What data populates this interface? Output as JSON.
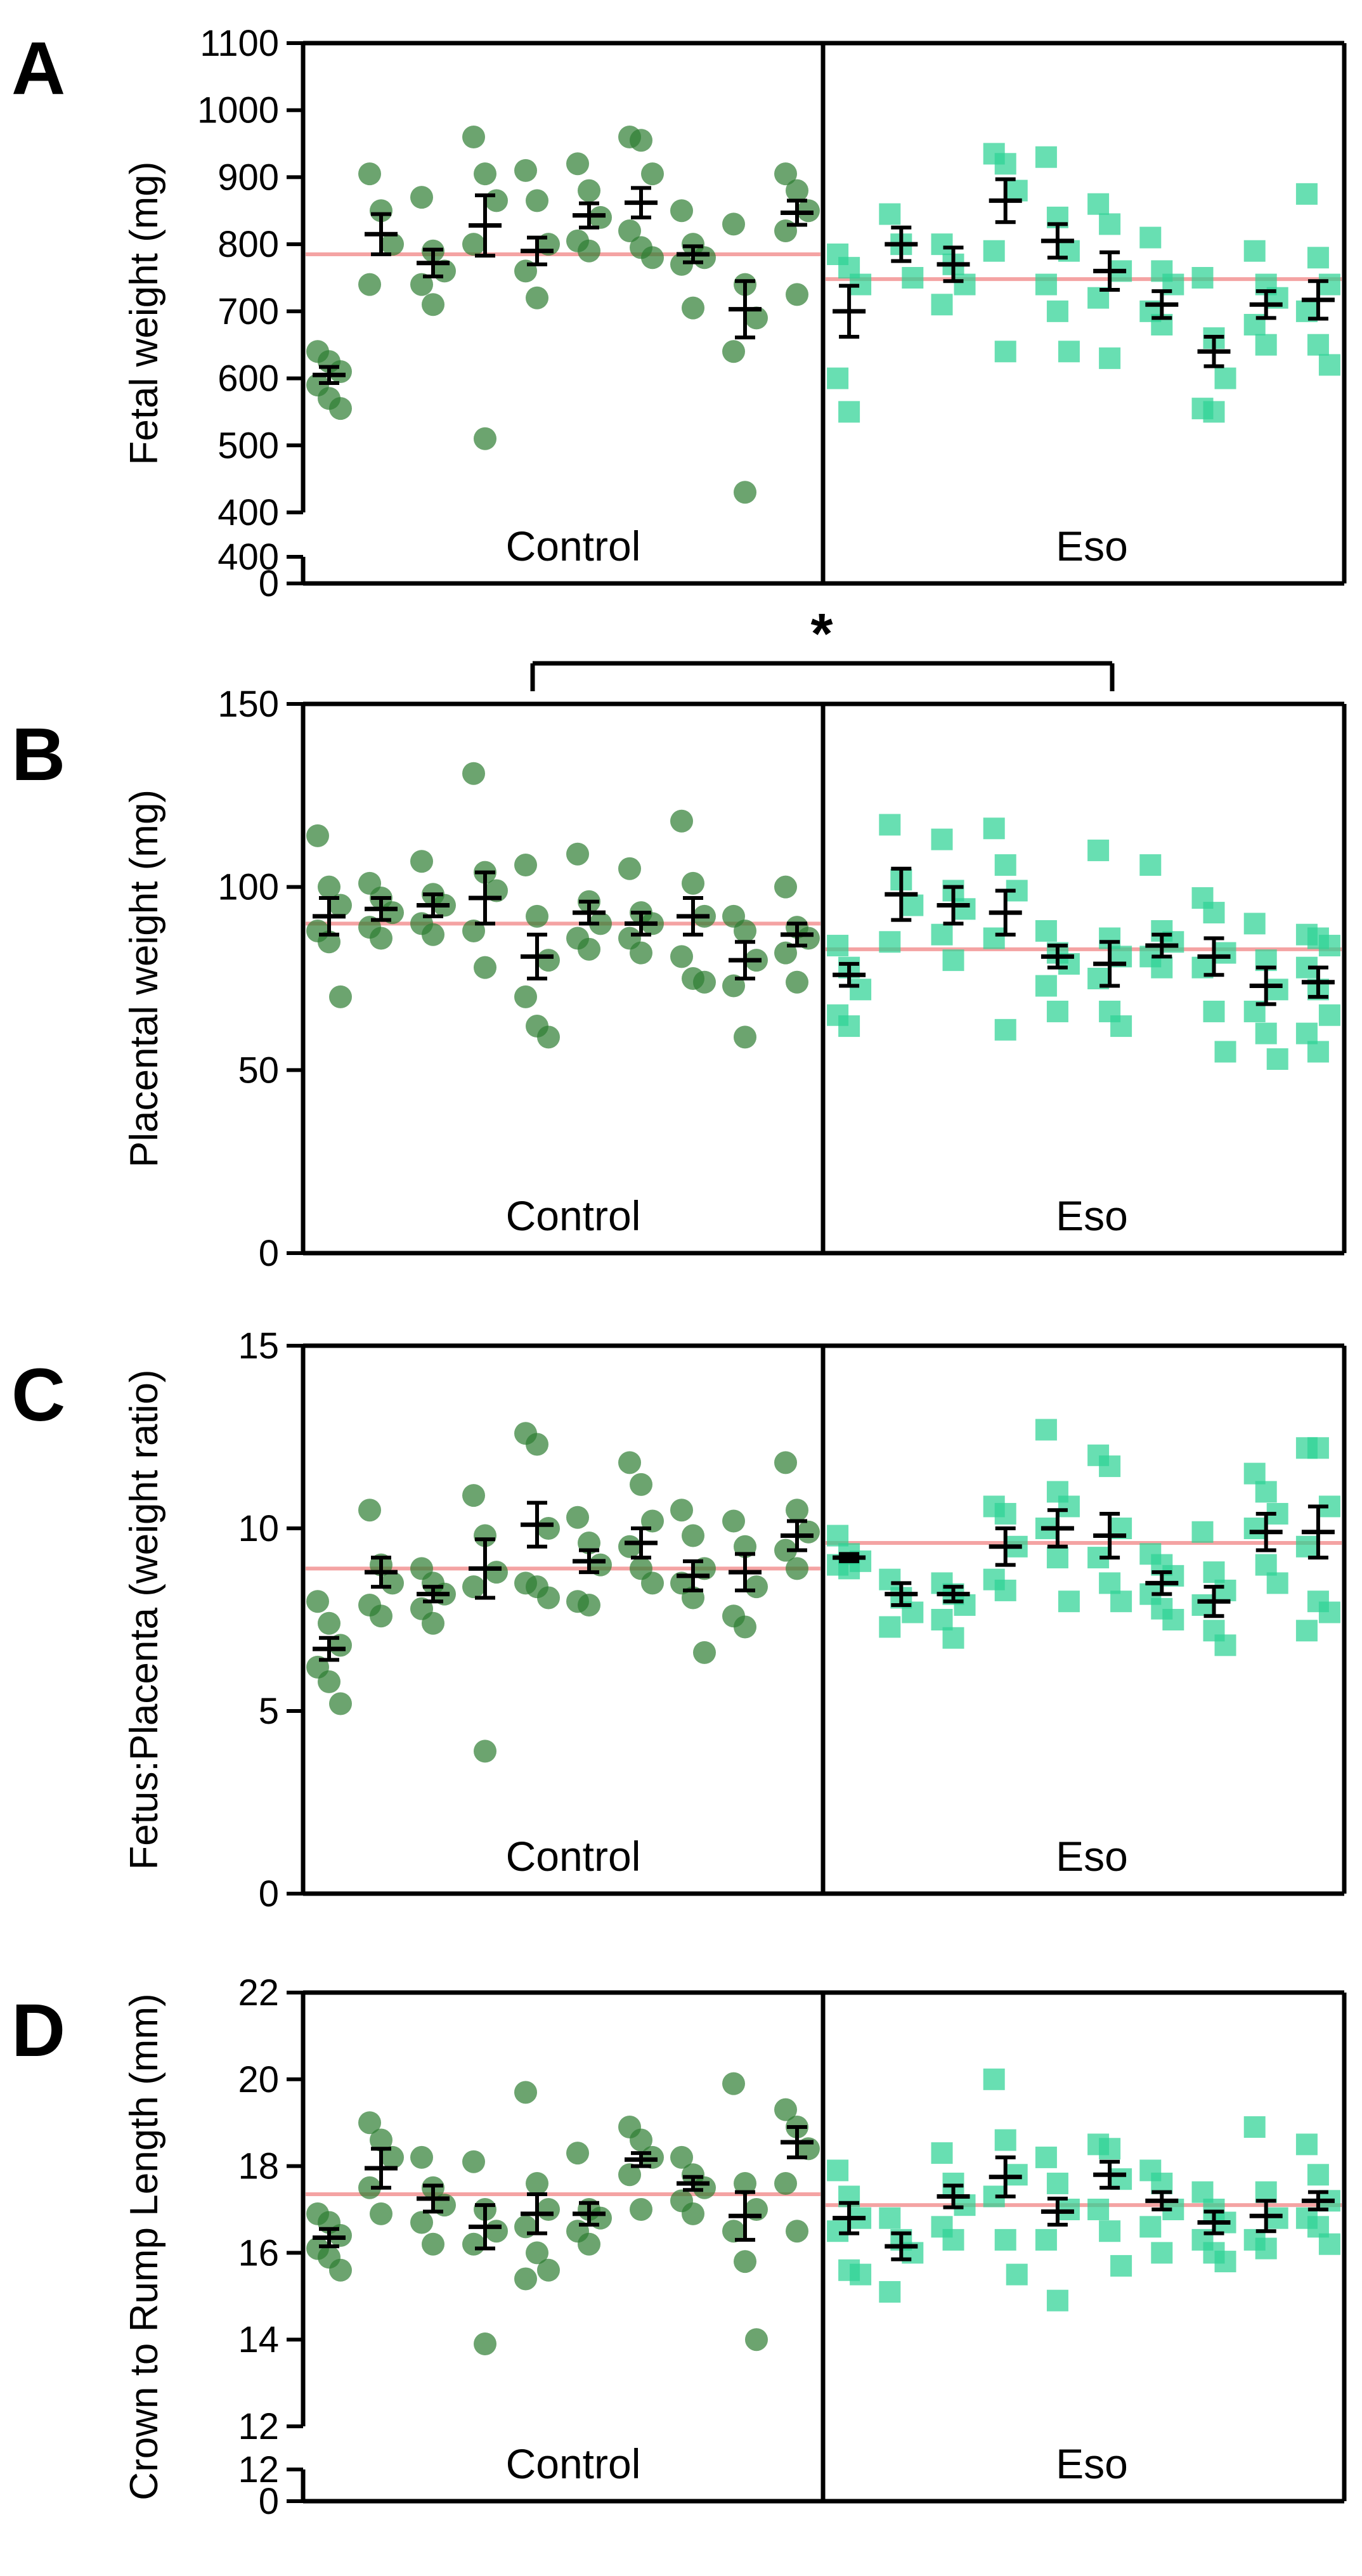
{
  "colors": {
    "control": "#2e7d32",
    "eso": "#2ed394",
    "mean_line": "#f4a3a3",
    "error_bar": "#000000"
  },
  "significance": {
    "mark": "*",
    "between": [
      "B",
      "C"
    ]
  },
  "chart_data": [
    {
      "panel": "A",
      "type": "scatter",
      "ylabel": "Fetal weight (mg)",
      "ylim": [
        400,
        1100
      ],
      "yticks": [
        400,
        500,
        600,
        700,
        800,
        900,
        1000,
        1100
      ],
      "broken_axis_tick": "400",
      "zero_tick": "0",
      "groups": [
        "Control",
        "Eso"
      ],
      "group_means": [
        785,
        748
      ],
      "control": {
        "points": [
          [
            640,
            625,
            610,
            590,
            570,
            555
          ],
          [
            905,
            850,
            800,
            740
          ],
          [
            870,
            790,
            760,
            740,
            710
          ],
          [
            960,
            905,
            865,
            800,
            510
          ],
          [
            910,
            865,
            800,
            760,
            720
          ],
          [
            920,
            880,
            840,
            805,
            790
          ],
          [
            960,
            955,
            905,
            820,
            795,
            780
          ],
          [
            850,
            800,
            780,
            770,
            705
          ],
          [
            830,
            740,
            690,
            640,
            430
          ],
          [
            905,
            880,
            850,
            820,
            725
          ]
        ],
        "means": [
          605,
          815,
          772,
          828,
          790,
          843,
          862,
          785,
          703,
          847
        ],
        "errors": [
          12,
          30,
          20,
          45,
          20,
          18,
          22,
          12,
          42,
          18
        ]
      },
      "eso": {
        "points": [
          [
            785,
            765,
            740,
            600,
            550
          ],
          [
            845,
            800,
            750
          ],
          [
            800,
            770,
            740,
            710
          ],
          [
            935,
            920,
            880,
            790,
            640
          ],
          [
            930,
            840,
            790,
            740,
            700,
            640
          ],
          [
            860,
            830,
            760,
            720,
            630
          ],
          [
            810,
            760,
            740,
            700,
            680
          ],
          [
            750,
            660,
            600,
            555,
            550
          ],
          [
            790,
            740,
            720,
            680,
            650
          ],
          [
            875,
            780,
            740,
            700,
            650,
            620
          ]
        ],
        "means": [
          700,
          800,
          770,
          865,
          805,
          760,
          710,
          640,
          710,
          717
        ],
        "errors": [
          38,
          25,
          25,
          32,
          25,
          28,
          20,
          22,
          20,
          28
        ]
      }
    },
    {
      "panel": "B",
      "type": "scatter",
      "ylabel": "Placental weight (mg)",
      "ylim": [
        0,
        150
      ],
      "yticks": [
        0,
        50,
        100,
        150
      ],
      "groups": [
        "Control",
        "Eso"
      ],
      "group_means": [
        90,
        83
      ],
      "control": {
        "points": [
          [
            114,
            100,
            95,
            88,
            85,
            70
          ],
          [
            101,
            97,
            93,
            89,
            86
          ],
          [
            107,
            98,
            95,
            90,
            87
          ],
          [
            131,
            104,
            99,
            88,
            78
          ],
          [
            106,
            92,
            80,
            70,
            62,
            59
          ],
          [
            109,
            96,
            90,
            86,
            83
          ],
          [
            105,
            93,
            90,
            86,
            82
          ],
          [
            118,
            101,
            92,
            81,
            75,
            74
          ],
          [
            92,
            88,
            80,
            73,
            59
          ],
          [
            100,
            89,
            86,
            82,
            74
          ]
        ],
        "means": [
          92,
          94,
          95,
          97,
          81,
          93,
          90,
          92,
          80,
          87
        ],
        "errors": [
          5,
          3,
          3,
          7,
          6,
          3,
          3,
          5,
          5,
          3
        ]
      },
      "eso": {
        "points": [
          [
            84,
            78,
            72,
            65,
            62
          ],
          [
            117,
            102,
            95,
            85
          ],
          [
            113,
            99,
            94,
            87,
            80
          ],
          [
            116,
            106,
            99,
            86,
            61
          ],
          [
            88,
            82,
            79,
            73,
            66
          ],
          [
            110,
            86,
            81,
            75,
            66,
            62
          ],
          [
            106,
            88,
            85,
            81,
            78
          ],
          [
            97,
            93,
            82,
            78,
            66,
            55
          ],
          [
            90,
            80,
            72,
            66,
            60,
            53
          ],
          [
            87,
            86,
            84,
            78,
            72,
            65,
            60,
            55
          ]
        ],
        "means": [
          76,
          98,
          95,
          93,
          81,
          79,
          84,
          81,
          73,
          74
        ],
        "errors": [
          3,
          7,
          5,
          6,
          3,
          6,
          3,
          5,
          5,
          4
        ]
      }
    },
    {
      "panel": "C",
      "type": "scatter",
      "ylabel": "Fetus:Placenta (weight ratio)",
      "ylim": [
        0,
        15
      ],
      "yticks": [
        0,
        5,
        10,
        15
      ],
      "groups": [
        "Control",
        "Eso"
      ],
      "group_means": [
        8.9,
        9.6
      ],
      "control": {
        "points": [
          [
            8.0,
            7.4,
            6.8,
            6.2,
            5.8,
            5.2
          ],
          [
            10.5,
            9.0,
            8.5,
            7.9,
            7.6
          ],
          [
            8.9,
            8.5,
            8.2,
            7.8,
            7.4
          ],
          [
            10.9,
            9.8,
            8.8,
            8.4,
            3.9
          ],
          [
            12.6,
            12.3,
            10.0,
            8.5,
            8.4,
            8.1
          ],
          [
            10.3,
            9.6,
            9.0,
            8.0,
            7.9
          ],
          [
            11.8,
            11.2,
            10.2,
            9.5,
            8.9,
            8.5
          ],
          [
            10.5,
            9.8,
            8.9,
            8.5,
            8.1,
            6.6
          ],
          [
            10.2,
            9.5,
            8.4,
            7.6,
            7.3
          ],
          [
            11.8,
            10.5,
            9.9,
            9.4,
            8.9
          ]
        ],
        "means": [
          6.7,
          8.8,
          8.2,
          8.9,
          10.1,
          9.1,
          9.6,
          8.7,
          8.8,
          9.8
        ],
        "errors": [
          0.3,
          0.4,
          0.2,
          0.8,
          0.6,
          0.3,
          0.4,
          0.4,
          0.5,
          0.4
        ]
      },
      "eso": {
        "points": [
          [
            9.8,
            9.3,
            9.1,
            9.0,
            8.9
          ],
          [
            8.6,
            8.1,
            7.7,
            7.3
          ],
          [
            8.5,
            8.2,
            7.9,
            7.5,
            7.0
          ],
          [
            10.6,
            10.4,
            9.5,
            8.6,
            8.3
          ],
          [
            12.7,
            11.0,
            10.6,
            10.0,
            9.2,
            8.0
          ],
          [
            12.0,
            11.7,
            10.0,
            9.2,
            8.5,
            8.0
          ],
          [
            9.3,
            9.0,
            8.7,
            8.2,
            7.8,
            7.5
          ],
          [
            9.9,
            8.8,
            8.3,
            7.9,
            7.2,
            6.8
          ],
          [
            11.5,
            11.0,
            10.4,
            10.0,
            9.0,
            8.5
          ],
          [
            12.2,
            12.2,
            10.6,
            9.5,
            8.0,
            7.7,
            7.2
          ]
        ],
        "means": [
          9.2,
          8.2,
          8.2,
          9.5,
          10.0,
          9.8,
          8.5,
          8.0,
          9.9,
          9.9
        ],
        "errors": [
          0.1,
          0.3,
          0.2,
          0.5,
          0.5,
          0.6,
          0.3,
          0.4,
          0.5,
          0.7
        ]
      }
    },
    {
      "panel": "D",
      "type": "scatter",
      "ylabel": "Crown to Rump Length (mm)",
      "ylim": [
        12,
        22
      ],
      "yticks": [
        12,
        14,
        16,
        18,
        20,
        22
      ],
      "broken_axis_tick": "12",
      "zero_tick": "0",
      "groups": [
        "Control",
        "Eso"
      ],
      "group_means": [
        17.35,
        17.1
      ],
      "control": {
        "points": [
          [
            16.9,
            16.7,
            16.4,
            16.1,
            15.9,
            15.6
          ],
          [
            19.0,
            18.6,
            18.2,
            17.5,
            16.9
          ],
          [
            18.2,
            17.5,
            17.1,
            16.7,
            16.2
          ],
          [
            18.1,
            17.0,
            16.5,
            16.2,
            13.9
          ],
          [
            19.7,
            17.6,
            17.0,
            16.6,
            16.0,
            15.6,
            15.4
          ],
          [
            18.3,
            17.0,
            16.8,
            16.5,
            16.2
          ],
          [
            18.9,
            18.6,
            18.2,
            17.8,
            17.0
          ],
          [
            18.2,
            17.8,
            17.5,
            17.2,
            16.9
          ],
          [
            19.9,
            17.6,
            17.0,
            16.5,
            15.8,
            14.0
          ],
          [
            19.3,
            18.9,
            18.4,
            17.6,
            16.5
          ]
        ],
        "means": [
          16.35,
          17.95,
          17.25,
          16.6,
          16.9,
          16.9,
          18.15,
          17.6,
          16.85,
          18.55
        ],
        "errors": [
          0.2,
          0.45,
          0.3,
          0.5,
          0.45,
          0.25,
          0.15,
          0.15,
          0.55,
          0.35
        ]
      },
      "eso": {
        "points": [
          [
            17.9,
            17.3,
            16.8,
            16.5,
            15.6,
            15.5
          ],
          [
            16.8,
            16.3,
            16.0,
            15.1
          ],
          [
            18.3,
            17.6,
            17.1,
            16.6,
            16.3
          ],
          [
            20.0,
            18.6,
            17.8,
            17.3,
            16.3,
            15.5
          ],
          [
            18.2,
            17.6,
            17.0,
            16.3,
            14.9
          ],
          [
            18.5,
            18.4,
            17.7,
            17.0,
            16.5,
            15.7
          ],
          [
            17.9,
            17.6,
            17.0,
            16.6,
            16.0
          ],
          [
            17.4,
            17.0,
            16.7,
            16.3,
            16.0,
            15.8
          ],
          [
            18.9,
            17.4,
            16.8,
            16.3,
            16.1
          ],
          [
            18.5,
            17.8,
            17.2,
            16.8,
            16.6,
            16.2
          ]
        ],
        "means": [
          16.8,
          16.15,
          17.3,
          17.75,
          16.95,
          17.8,
          17.2,
          16.7,
          16.85,
          17.2
        ],
        "errors": [
          0.35,
          0.3,
          0.25,
          0.45,
          0.3,
          0.3,
          0.2,
          0.25,
          0.35,
          0.2
        ]
      }
    }
  ]
}
